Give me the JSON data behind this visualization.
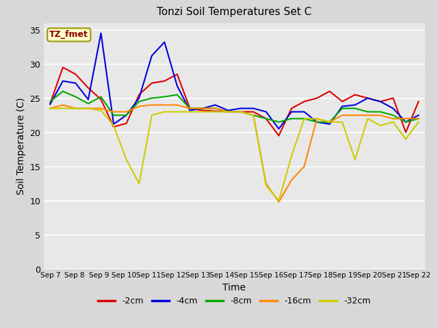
{
  "title": "Tonzi Soil Temperatures Set C",
  "xlabel": "Time",
  "ylabel": "Soil Temperature (C)",
  "annotation": "TZ_fmet",
  "ylim": [
    0,
    36
  ],
  "yticks": [
    0,
    5,
    10,
    15,
    20,
    25,
    30,
    35
  ],
  "x_labels": [
    "Sep 7",
    "Sep 8",
    "Sep 9",
    "Sep 10",
    "Sep 11",
    "Sep 12",
    "Sep 13",
    "Sep 14",
    "Sep 15",
    "Sep 16",
    "Sep 17",
    "Sep 18",
    "Sep 19",
    "Sep 20",
    "Sep 21",
    "Sep 22"
  ],
  "series": {
    "-2cm": {
      "color": "#dd0000",
      "values": [
        24.2,
        29.5,
        28.5,
        26.5,
        24.8,
        20.8,
        21.3,
        25.5,
        27.2,
        27.5,
        28.5,
        23.5,
        23.2,
        23.1,
        23.0,
        23.0,
        23.0,
        22.0,
        19.5,
        23.5,
        24.5,
        25.0,
        26.0,
        24.5,
        25.5,
        25.0,
        24.5,
        25.0,
        20.0,
        24.5
      ]
    },
    "-4cm": {
      "color": "#0000dd",
      "values": [
        24.1,
        27.5,
        27.2,
        24.8,
        34.5,
        21.2,
        22.5,
        25.0,
        31.2,
        33.2,
        26.8,
        23.2,
        23.5,
        24.0,
        23.2,
        23.5,
        23.5,
        23.0,
        20.5,
        23.0,
        23.0,
        21.5,
        21.2,
        23.8,
        24.0,
        25.0,
        24.5,
        23.5,
        21.5,
        22.5
      ]
    },
    "-8cm": {
      "color": "#00aa00",
      "values": [
        24.5,
        26.0,
        25.2,
        24.2,
        25.2,
        22.5,
        22.5,
        24.5,
        25.0,
        25.2,
        25.5,
        23.5,
        23.5,
        23.5,
        23.0,
        23.0,
        22.5,
        22.0,
        21.5,
        22.0,
        22.0,
        21.5,
        21.5,
        23.5,
        23.5,
        23.0,
        23.0,
        22.5,
        21.5,
        22.0
      ]
    },
    "-16cm": {
      "color": "#ff8800",
      "values": [
        23.5,
        24.0,
        23.5,
        23.5,
        23.5,
        23.0,
        23.0,
        23.8,
        24.0,
        24.0,
        24.0,
        23.5,
        23.5,
        23.5,
        23.0,
        23.0,
        22.5,
        12.5,
        9.8,
        13.0,
        15.0,
        22.0,
        21.5,
        22.5,
        22.5,
        22.5,
        22.5,
        22.0,
        22.0,
        22.0
      ]
    },
    "-32cm": {
      "color": "#cccc00",
      "values": [
        23.5,
        23.5,
        23.5,
        23.5,
        23.2,
        21.0,
        16.0,
        12.5,
        22.5,
        23.0,
        23.0,
        23.0,
        23.0,
        23.0,
        23.0,
        23.0,
        22.5,
        12.2,
        10.0,
        16.5,
        22.0,
        22.0,
        21.5,
        21.5,
        16.0,
        22.0,
        21.0,
        21.5,
        19.0,
        21.5
      ]
    }
  },
  "legend_order": [
    "-2cm",
    "-4cm",
    "-8cm",
    "-16cm",
    "-32cm"
  ],
  "fig_bg": "#d8d8d8",
  "plot_bg": "#e8e8e8",
  "grid_color": "#ffffff",
  "figsize": [
    6.4,
    4.8
  ],
  "dpi": 100
}
